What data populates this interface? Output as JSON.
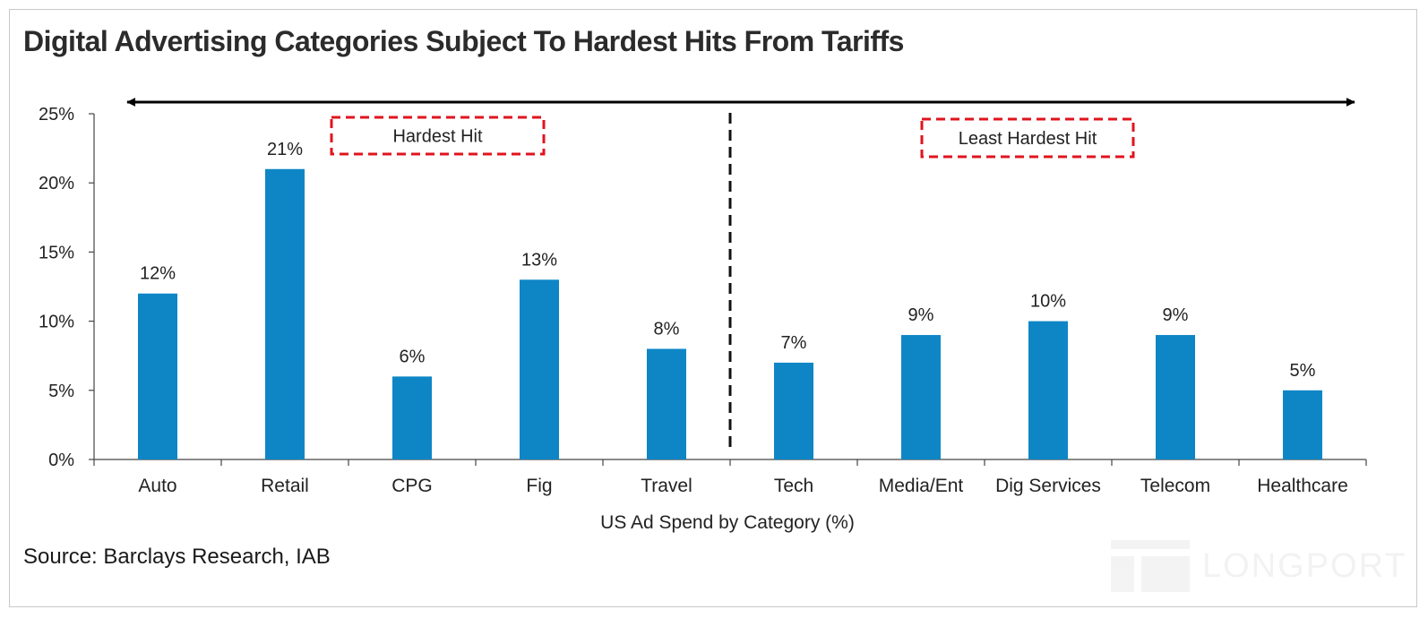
{
  "title": "Digital Advertising Categories Subject To Hardest Hits From Tariffs",
  "source": "Source: Barclays Research, IAB",
  "watermark": "LONGPORT",
  "chart_data": {
    "type": "bar",
    "categories": [
      "Auto",
      "Retail",
      "CPG",
      "Fig",
      "Travel",
      "Tech",
      "Media/Ent",
      "Dig Services",
      "Telecom",
      "Healthcare"
    ],
    "values": [
      12,
      21,
      6,
      13,
      8,
      7,
      9,
      10,
      9,
      5
    ],
    "data_labels": [
      "12%",
      "21%",
      "6%",
      "13%",
      "8%",
      "7%",
      "9%",
      "10%",
      "9%",
      "5%"
    ],
    "xlabel": "US Ad Spend by Category (%)",
    "ylabel": "",
    "ylim": [
      0,
      25
    ],
    "yticks": [
      "0%",
      "5%",
      "10%",
      "15%",
      "20%",
      "25%"
    ],
    "grid": false,
    "bar_color": "#0e86c6",
    "annotations": {
      "left_group": "Hardest Hit",
      "right_group": "Least Hardest Hit",
      "box_color": "#e0141e",
      "divider": "dashed line between Travel and Tech",
      "arrow": "double-headed arrow spanning the plot"
    }
  }
}
